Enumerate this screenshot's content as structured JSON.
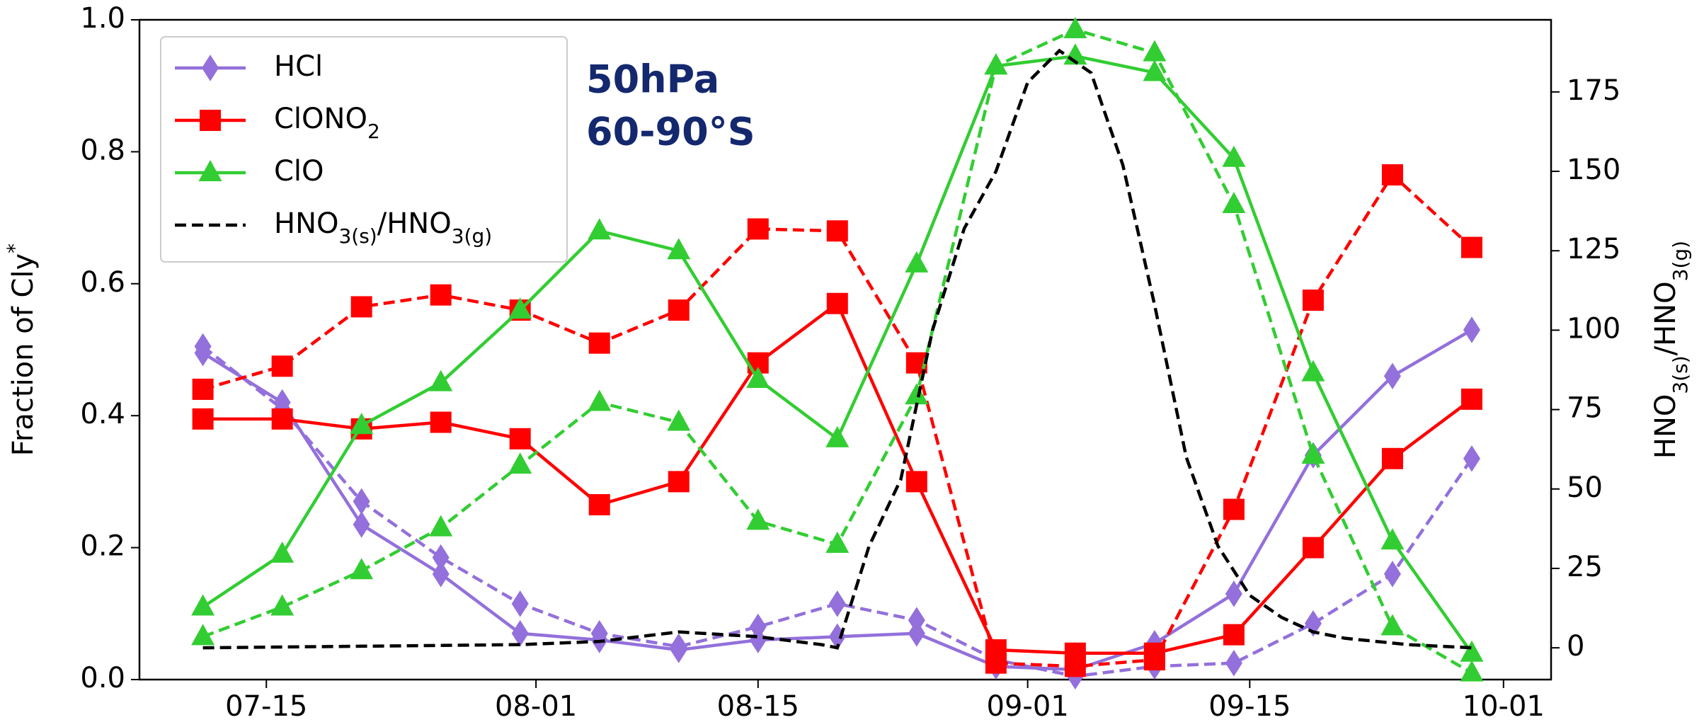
{
  "chart_data": {
    "type": "line",
    "ylabel": "Fraction of Cly*",
    "y2label": "HNO3(s)/HNO3(g)",
    "annotations": [
      "50hPa",
      "60-90°S"
    ],
    "x": [
      "07-11",
      "07-16",
      "07-21",
      "07-26",
      "07-31",
      "08-05",
      "08-10",
      "08-15",
      "08-20",
      "08-25",
      "08-30",
      "09-04",
      "09-09",
      "09-14",
      "09-19",
      "09-24",
      "09-29"
    ],
    "xlim": [
      "07-07",
      "10-04"
    ],
    "xticks": [
      "07-15",
      "08-01",
      "08-15",
      "09-01",
      "09-15",
      "10-01"
    ],
    "ylim": [
      0,
      1
    ],
    "yticks": [
      {
        "value": 0,
        "label": "0.0"
      },
      0.2,
      0.4,
      0.6,
      0.8,
      {
        "value": 1,
        "label": "1.0"
      }
    ],
    "y2lim": [
      -10,
      197.7
    ],
    "y2ticks": [
      0,
      25,
      50,
      75,
      100,
      125,
      150,
      175
    ],
    "legend": "upper left",
    "series": [
      {
        "name": "HCl",
        "color": "#9370db",
        "marker": "diamond",
        "values": [
          0.495,
          0.42,
          0.235,
          0.16,
          0.07,
          0.06,
          0.045,
          0.06,
          0.065,
          0.07,
          0.02,
          0.015,
          0.055,
          0.13,
          0.34,
          0.46,
          0.53
        ],
        "dashed_values": [
          0.505,
          0.41,
          0.27,
          0.185,
          0.115,
          0.07,
          0.05,
          0.08,
          0.115,
          0.09,
          0.03,
          0.005,
          0.02,
          0.025,
          0.085,
          0.16,
          0.335
        ]
      },
      {
        "name": "ClONO2",
        "color": "#ff0000",
        "marker": "square",
        "values": [
          0.395,
          0.395,
          0.38,
          0.39,
          0.365,
          0.265,
          0.3,
          0.48,
          0.57,
          0.3,
          0.045,
          0.04,
          0.04,
          0.068,
          0.2,
          0.335,
          0.425
        ],
        "dashed_values": [
          0.44,
          0.475,
          0.565,
          0.583,
          0.56,
          0.51,
          0.56,
          0.683,
          0.68,
          0.48,
          0.025,
          0.02,
          0.03,
          0.258,
          0.575,
          0.765,
          0.655
        ]
      },
      {
        "name": "ClO",
        "color": "#32cd32",
        "marker": "triangle",
        "values": [
          0.11,
          0.19,
          0.385,
          0.45,
          0.56,
          0.68,
          0.65,
          0.455,
          0.365,
          0.63,
          0.93,
          0.945,
          0.92,
          0.79,
          0.465,
          0.21,
          0.04
        ],
        "dashed_values": [
          0.065,
          0.11,
          0.165,
          0.23,
          0.325,
          0.42,
          0.39,
          0.24,
          0.205,
          0.43,
          0.93,
          0.985,
          0.95,
          0.72,
          0.34,
          0.08,
          0.01
        ]
      },
      {
        "name": "HNO3(s)/HNO3(g)",
        "color": "#000000",
        "linestyle": "dashed",
        "axis": "y2",
        "x": [
          "07-11",
          "07-31",
          "08-05",
          "08-10",
          "08-15",
          "08-19",
          "08-20",
          "08-22",
          "08-24",
          "08-26",
          "08-28",
          "08-30",
          "09-01",
          "09-03",
          "09-05",
          "09-07",
          "09-09",
          "09-11",
          "09-13",
          "09-15",
          "09-17",
          "09-19",
          "09-21",
          "09-25",
          "09-29"
        ],
        "values": [
          0,
          1,
          2,
          5,
          3.5,
          1,
          0,
          32,
          53,
          100,
          132,
          150,
          178,
          188,
          181,
          152,
          108,
          60,
          32,
          16.5,
          9.6,
          5,
          3,
          1,
          0
        ]
      }
    ]
  }
}
